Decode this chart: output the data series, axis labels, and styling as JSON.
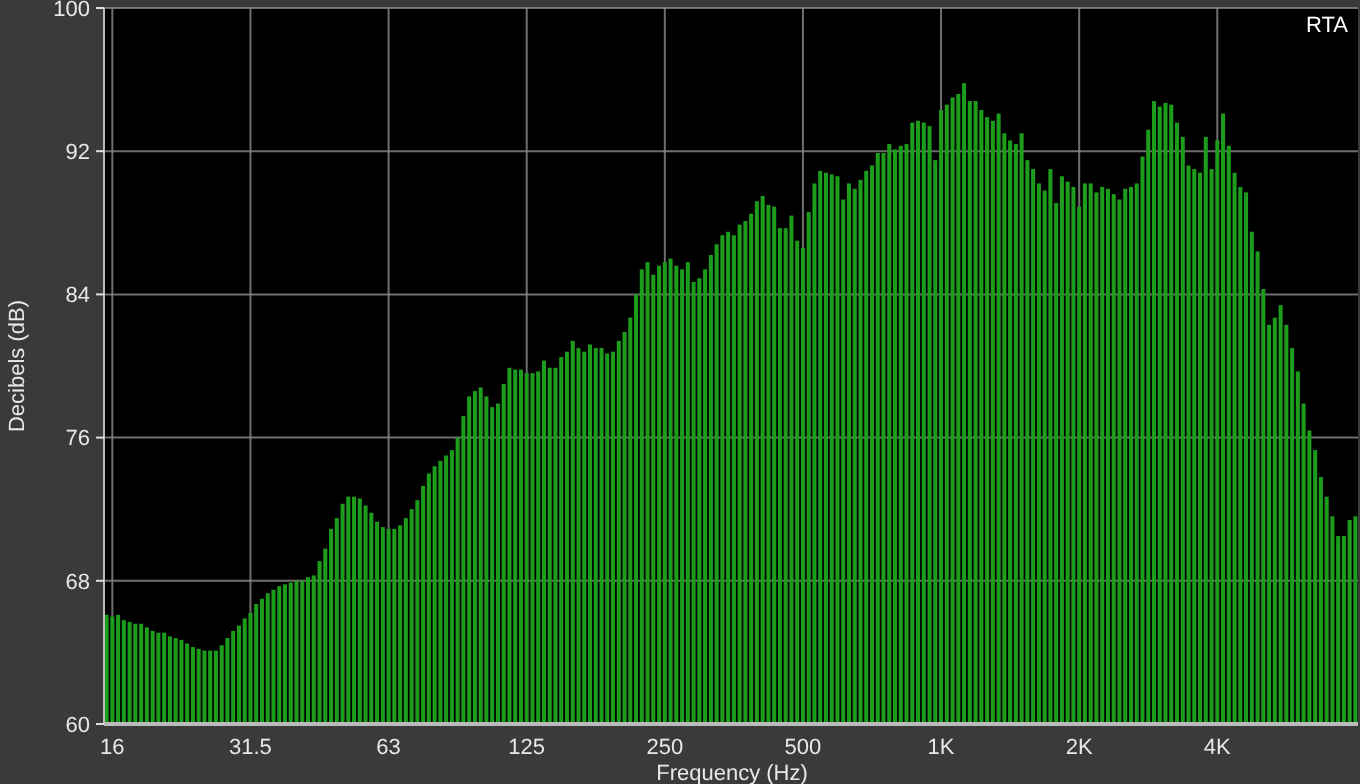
{
  "chart_data": {
    "type": "bar",
    "title": "RTA",
    "xlabel": "Frequency (Hz)",
    "ylabel": "Decibels (dB)",
    "categories": [
      null,
      "16",
      null,
      null,
      null,
      null,
      null,
      null,
      null,
      null,
      null,
      null,
      null,
      null,
      null,
      null,
      null,
      null,
      null,
      null,
      null,
      null,
      null,
      null,
      null,
      "31.5",
      null,
      null,
      null,
      null,
      null,
      null,
      null,
      null,
      null,
      null,
      null,
      null,
      null,
      null,
      null,
      null,
      null,
      null,
      null,
      null,
      null,
      null,
      null,
      "63",
      null,
      null,
      null,
      null,
      null,
      null,
      null,
      null,
      null,
      null,
      null,
      null,
      null,
      null,
      null,
      null,
      null,
      null,
      null,
      null,
      null,
      null,
      null,
      "125",
      null,
      null,
      null,
      null,
      null,
      null,
      null,
      null,
      null,
      null,
      null,
      null,
      null,
      null,
      null,
      null,
      null,
      null,
      null,
      null,
      null,
      null,
      null,
      "250",
      null,
      null,
      null,
      null,
      null,
      null,
      null,
      null,
      null,
      null,
      null,
      null,
      null,
      null,
      null,
      null,
      null,
      null,
      null,
      null,
      null,
      null,
      null,
      "500",
      null,
      null,
      null,
      null,
      null,
      null,
      null,
      null,
      null,
      null,
      null,
      null,
      null,
      null,
      null,
      null,
      null,
      null,
      null,
      null,
      null,
      null,
      null,
      "1K",
      null,
      null,
      null,
      null,
      null,
      null,
      null,
      null,
      null,
      null,
      null,
      null,
      null,
      null,
      null,
      null,
      null,
      null,
      null,
      null,
      null,
      null,
      null,
      "2K",
      null,
      null,
      null,
      null,
      null,
      null,
      null,
      null,
      null,
      null,
      null,
      null,
      null,
      null,
      null,
      null,
      null,
      null,
      null,
      null,
      null,
      null,
      null,
      "4K",
      null,
      null,
      null,
      null,
      null,
      null,
      null,
      null,
      null,
      null,
      null,
      null,
      null,
      null,
      null,
      null,
      null,
      null,
      null,
      null,
      null,
      null,
      null,
      null
    ],
    "values": [
      66.1,
      66.0,
      66.1,
      65.8,
      65.7,
      65.6,
      65.6,
      65.4,
      65.2,
      65.1,
      65.1,
      64.9,
      64.8,
      64.7,
      64.5,
      64.3,
      64.2,
      64.1,
      64.1,
      64.1,
      64.4,
      64.8,
      65.2,
      65.5,
      65.9,
      66.2,
      66.7,
      67.0,
      67.3,
      67.5,
      67.7,
      67.8,
      67.9,
      68.0,
      68.0,
      68.2,
      68.3,
      69.1,
      69.8,
      70.9,
      71.5,
      72.3,
      72.7,
      72.7,
      72.6,
      72.2,
      71.8,
      71.3,
      71.0,
      70.9,
      70.9,
      71.1,
      71.5,
      72.0,
      72.5,
      73.3,
      74.0,
      74.4,
      74.7,
      75.0,
      75.3,
      76.0,
      77.2,
      78.3,
      78.6,
      78.8,
      78.3,
      77.7,
      77.9,
      79.0,
      79.9,
      79.8,
      79.8,
      79.6,
      79.6,
      79.7,
      80.3,
      79.9,
      79.9,
      80.5,
      80.8,
      81.4,
      81.0,
      80.8,
      81.2,
      81.0,
      81.0,
      80.7,
      80.8,
      81.4,
      81.9,
      82.7,
      84.0,
      85.4,
      85.8,
      85.1,
      85.6,
      85.8,
      86.0,
      85.6,
      85.4,
      85.8,
      84.7,
      84.9,
      85.4,
      86.2,
      86.8,
      87.3,
      87.5,
      87.3,
      87.9,
      88.1,
      88.5,
      89.2,
      89.5,
      89.0,
      88.9,
      87.7,
      87.7,
      88.4,
      87.0,
      86.6,
      88.6,
      90.2,
      90.9,
      90.8,
      90.7,
      90.6,
      89.3,
      90.2,
      89.9,
      90.4,
      90.9,
      91.2,
      91.9,
      91.9,
      92.4,
      92.1,
      92.3,
      92.4,
      93.6,
      93.7,
      93.6,
      93.4,
      91.5,
      94.3,
      94.6,
      95.0,
      95.2,
      95.8,
      94.8,
      94.8,
      94.3,
      93.9,
      93.7,
      94.1,
      93.0,
      92.6,
      92.4,
      93.0,
      91.5,
      91.0,
      90.2,
      89.8,
      91.0,
      89.1,
      90.6,
      90.3,
      90.0,
      88.9,
      90.2,
      90.2,
      89.7,
      90.0,
      89.9,
      89.6,
      89.3,
      89.9,
      90.0,
      90.2,
      91.7,
      93.2,
      94.8,
      94.5,
      94.7,
      94.6,
      93.6,
      92.8,
      91.2,
      91.0,
      90.8,
      92.8,
      91.0,
      92.6,
      94.1,
      92.3,
      90.8,
      90.0,
      89.7,
      87.5,
      86.4,
      84.3,
      82.3,
      82.7,
      83.4,
      82.3,
      81.0,
      79.7,
      77.9,
      76.4,
      75.3,
      73.8,
      72.7,
      71.6,
      70.5,
      70.5,
      71.4,
      71.6
    ],
    "color": "#1c9e1c",
    "ylim": [
      60,
      100
    ],
    "yticks": [
      60,
      68,
      76,
      84,
      92,
      100
    ],
    "grid": true
  }
}
